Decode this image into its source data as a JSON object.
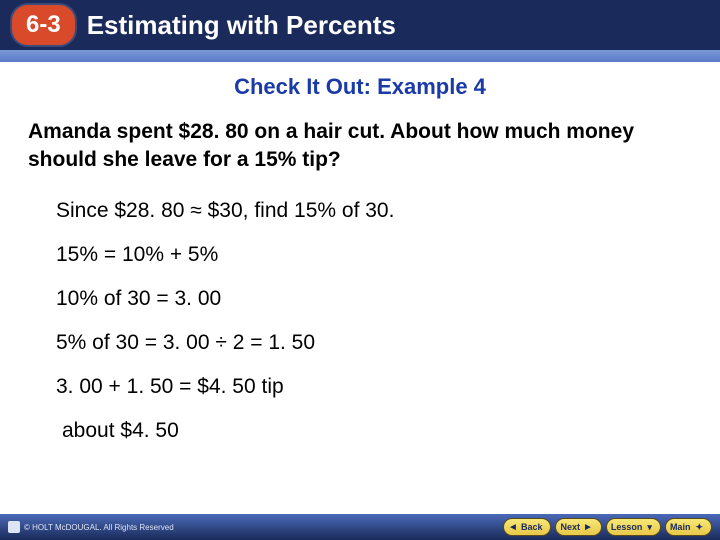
{
  "header": {
    "lesson_number": "6-3",
    "lesson_title": "Estimating with Percents",
    "bg_dark": "#1a2a5a",
    "bg_light": "#6a8ad0",
    "badge_bg": "#d84a2a",
    "badge_text_color": "#ffffff"
  },
  "content": {
    "subtitle": "Check It Out: Example 4",
    "subtitle_color": "#1a3aa8",
    "question": "Amanda spent $28. 80 on a hair cut. About how much money should she leave for a 15% tip?",
    "work": [
      "Since $28. 80 ≈ $30, find 15% of 30.",
      "15% = 10% + 5%",
      "10% of 30 = 3. 00",
      "5% of 30 = 3. 00 ÷ 2 = 1. 50",
      "3. 00 + 1. 50 = $4. 50 tip"
    ],
    "answer": "about $4. 50",
    "text_color": "#000000"
  },
  "footer": {
    "copyright": "© HOLT McDOUGAL. All Rights Reserved",
    "buttons": {
      "back": "Back",
      "next": "Next",
      "lesson": "Lesson",
      "main": "Main"
    },
    "bg_gradient_top": "#4a6ab8",
    "bg_gradient_bottom": "#1a2a5a",
    "button_bg": "#f0d858"
  }
}
